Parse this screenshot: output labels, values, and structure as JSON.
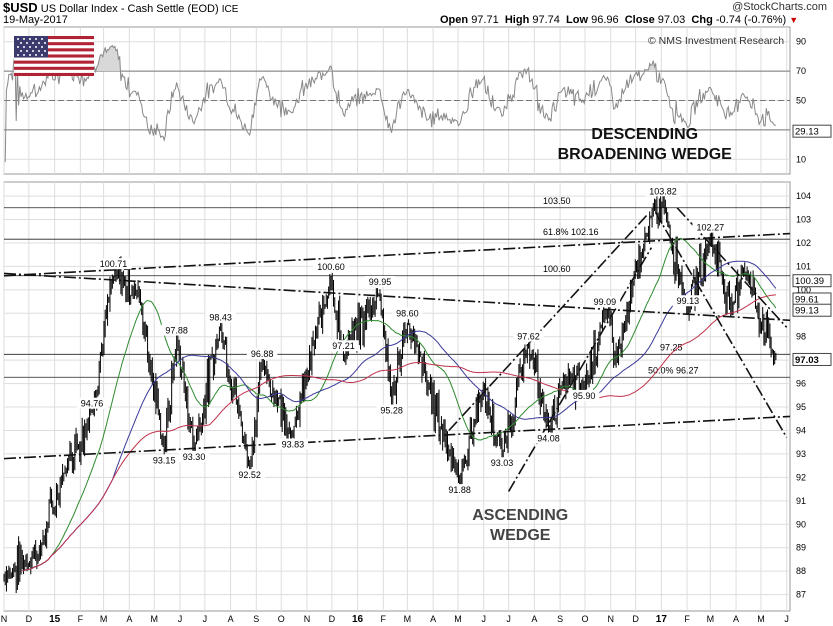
{
  "header": {
    "symbol": "$USD",
    "name": "US Dollar Index - Cash Settle (EOD)",
    "exchange": "ICE",
    "date": "19-May-2017",
    "brand": "@StockCharts.com",
    "open_label": "Open",
    "open": "97.71",
    "high_label": "High",
    "high": "97.74",
    "low_label": "Low",
    "low": "96.96",
    "close_label": "Close",
    "close": "97.03",
    "chg_label": "Chg",
    "chg": "-0.74 (-0.76%)",
    "copyright": "© NMS Investment Research"
  },
  "colors": {
    "grid": "#dddddd",
    "price": "#000000",
    "ma_fast": "#2e8b2e",
    "ma_mid": "#3a3a9a",
    "ma_slow": "#c0304a",
    "rsi": "#888888",
    "rsi_fill": "#d8d8d8",
    "label_box": "#ffffff"
  },
  "icons": [
    "flag-icon",
    "down-triangle-icon"
  ],
  "chart_data": {
    "type": "line",
    "panels": [
      "rsi",
      "price"
    ],
    "rsi": {
      "ylim": [
        0,
        100
      ],
      "yticks": [
        10,
        30,
        50,
        70,
        90
      ],
      "last_value": "29.13",
      "overbought": 70,
      "oversold": 30
    },
    "price": {
      "ylim": [
        86.3,
        104.6
      ],
      "yticks": [
        87,
        88,
        89,
        90,
        91,
        92,
        93,
        94,
        95,
        96,
        97,
        98,
        99,
        100,
        101,
        102,
        103,
        104
      ],
      "last_close": "97.03",
      "right_labels": [
        {
          "value": 100.39,
          "text": "100.39"
        },
        {
          "value": 99.61,
          "text": "99.61"
        },
        {
          "value": 99.13,
          "text": "99.13"
        }
      ],
      "xticks": [
        "N",
        "D",
        "15",
        "F",
        "M",
        "A",
        "M",
        "J",
        "J",
        "A",
        "S",
        "O",
        "N",
        "D",
        "16",
        "F",
        "M",
        "A",
        "M",
        "J",
        "J",
        "A",
        "S",
        "O",
        "N",
        "D",
        "17",
        "F",
        "M",
        "A",
        "M",
        "J"
      ],
      "xtick_dates": [
        "2014-11-01",
        "2014-12-01",
        "2015-01-01",
        "2015-02-01",
        "2015-03-01",
        "2015-04-01",
        "2015-05-01",
        "2015-06-01",
        "2015-07-01",
        "2015-08-01",
        "2015-09-01",
        "2015-10-01",
        "2015-11-01",
        "2015-12-01",
        "2016-01-01",
        "2016-02-01",
        "2016-03-01",
        "2016-04-01",
        "2016-05-01",
        "2016-06-01",
        "2016-07-01",
        "2016-08-01",
        "2016-09-01",
        "2016-10-01",
        "2016-11-01",
        "2016-12-01",
        "2017-01-01",
        "2017-02-01",
        "2017-03-01",
        "2017-04-01",
        "2017-05-01",
        "2017-06-01"
      ],
      "date_range": [
        "2014-11-01",
        "2017-06-05"
      ],
      "anchor_points": [
        {
          "date": "2014-11-01",
          "value": 87.7
        },
        {
          "date": "2014-12-15",
          "value": 89.0
        },
        {
          "date": "2015-01-15",
          "value": 92.5
        },
        {
          "date": "2015-02-15",
          "value": 94.76
        },
        {
          "date": "2015-03-13",
          "value": 100.71
        },
        {
          "date": "2015-04-13",
          "value": 99.8
        },
        {
          "date": "2015-05-13",
          "value": 93.15
        },
        {
          "date": "2015-05-28",
          "value": 97.88
        },
        {
          "date": "2015-06-18",
          "value": 93.3
        },
        {
          "date": "2015-07-20",
          "value": 98.43
        },
        {
          "date": "2015-08-24",
          "value": 92.52
        },
        {
          "date": "2015-09-08",
          "value": 96.88
        },
        {
          "date": "2015-10-15",
          "value": 93.83
        },
        {
          "date": "2015-11-30",
          "value": 100.6
        },
        {
          "date": "2015-12-15",
          "value": 97.21
        },
        {
          "date": "2016-01-28",
          "value": 99.95
        },
        {
          "date": "2016-02-11",
          "value": 95.28
        },
        {
          "date": "2016-03-01",
          "value": 98.6
        },
        {
          "date": "2016-05-03",
          "value": 91.88
        },
        {
          "date": "2016-05-30",
          "value": 95.8
        },
        {
          "date": "2016-06-23",
          "value": 93.03
        },
        {
          "date": "2016-07-25",
          "value": 97.62
        },
        {
          "date": "2016-08-18",
          "value": 94.08
        },
        {
          "date": "2016-09-05",
          "value": 96.0
        },
        {
          "date": "2016-09-30",
          "value": 95.9
        },
        {
          "date": "2016-10-25",
          "value": 99.09
        },
        {
          "date": "2016-11-09",
          "value": 97.25
        },
        {
          "date": "2016-12-15",
          "value": 102.5
        },
        {
          "date": "2017-01-03",
          "value": 103.82
        },
        {
          "date": "2017-02-02",
          "value": 99.13
        },
        {
          "date": "2017-03-01",
          "value": 102.27
        },
        {
          "date": "2017-03-27",
          "value": 99.3
        },
        {
          "date": "2017-04-10",
          "value": 101.0
        },
        {
          "date": "2017-05-19",
          "value": 97.03
        }
      ],
      "labels": [
        {
          "date": "2015-02-15",
          "value": 94.76,
          "text": "94.76"
        },
        {
          "date": "2015-03-13",
          "value": 100.71,
          "text": "100.71"
        },
        {
          "date": "2015-05-13",
          "value": 93.15,
          "text": "93.15"
        },
        {
          "date": "2015-05-28",
          "value": 97.88,
          "text": "97.88"
        },
        {
          "date": "2015-06-18",
          "value": 93.3,
          "text": "93.30"
        },
        {
          "date": "2015-07-20",
          "value": 98.43,
          "text": "98.43"
        },
        {
          "date": "2015-08-24",
          "value": 92.52,
          "text": "92.52"
        },
        {
          "date": "2015-09-08",
          "value": 96.88,
          "text": "96.88"
        },
        {
          "date": "2015-10-15",
          "value": 93.83,
          "text": "93.83"
        },
        {
          "date": "2015-11-30",
          "value": 100.6,
          "text": "100.60"
        },
        {
          "date": "2015-12-15",
          "value": 97.21,
          "text": "97.21"
        },
        {
          "date": "2016-01-28",
          "value": 99.95,
          "text": "99.95"
        },
        {
          "date": "2016-02-11",
          "value": 95.28,
          "text": "95.28"
        },
        {
          "date": "2016-03-01",
          "value": 98.6,
          "text": "98.60"
        },
        {
          "date": "2016-05-03",
          "value": 91.88,
          "text": "91.88"
        },
        {
          "date": "2016-06-23",
          "value": 93.03,
          "text": "93.03"
        },
        {
          "date": "2016-07-25",
          "value": 97.62,
          "text": "97.62"
        },
        {
          "date": "2016-08-18",
          "value": 94.08,
          "text": "94.08"
        },
        {
          "date": "2016-09-30",
          "value": 95.9,
          "text": "95.90"
        },
        {
          "date": "2016-10-25",
          "value": 99.09,
          "text": "99.09"
        },
        {
          "date": "2017-01-03",
          "value": 103.82,
          "text": "103.82"
        },
        {
          "date": "2017-02-02",
          "value": 99.13,
          "text": "99.13"
        },
        {
          "date": "2017-03-01",
          "value": 102.27,
          "text": "102.27"
        }
      ],
      "levels": [
        {
          "value": 103.5,
          "text": "103.50"
        },
        {
          "value": 102.16,
          "text": "61.8%  102.16"
        },
        {
          "value": 100.6,
          "text": "100.60"
        },
        {
          "value": 97.25,
          "text": "97.25"
        },
        {
          "value": 96.27,
          "text": "50.0%  96.27"
        }
      ],
      "trendlines": [
        {
          "name": "broadening-top",
          "from": [
            "2014-11-01",
            100.6
          ],
          "to": [
            "2017-06-05",
            102.4
          ],
          "style": "dashdot"
        },
        {
          "name": "broadening-mid",
          "from": [
            "2014-11-01",
            100.7
          ],
          "to": [
            "2017-06-05",
            98.7
          ],
          "style": "dashdot"
        },
        {
          "name": "broadening-bottom",
          "from": [
            "2014-11-01",
            92.8
          ],
          "to": [
            "2017-06-05",
            94.6
          ],
          "style": "dashdot"
        },
        {
          "name": "ascending-wedge-upper",
          "from": [
            "2016-04-20",
            94.0
          ],
          "to": [
            "2016-12-15",
            103.2
          ],
          "style": "dashdot"
        },
        {
          "name": "ascending-wedge-lower",
          "from": [
            "2016-07-01",
            91.4
          ],
          "to": [
            "2016-12-20",
            101.8
          ],
          "style": "dashdot"
        },
        {
          "name": "descending-wedge-upper",
          "from": [
            "2017-01-20",
            103.5
          ],
          "to": [
            "2017-06-01",
            98.4
          ],
          "style": "dashdot"
        },
        {
          "name": "descending-wedge-lower",
          "from": [
            "2016-12-25",
            103.3
          ],
          "to": [
            "2017-06-01",
            93.7
          ],
          "style": "dashdot"
        }
      ],
      "annotations": [
        {
          "text": "DESCENDING",
          "date": "2016-12-12",
          "value_rsi": "top"
        },
        {
          "text": "BROADENING WEDGE",
          "date": "2016-12-12",
          "value_rsi": "bottom"
        },
        {
          "text": "ASCENDING",
          "date": "2016-07-15",
          "value": 90.3
        },
        {
          "text": "WEDGE",
          "date": "2016-07-15",
          "value": 89.0
        }
      ]
    }
  }
}
